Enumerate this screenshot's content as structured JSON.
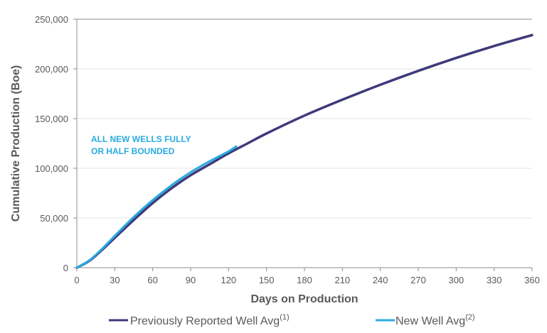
{
  "chart_data": {
    "type": "line",
    "xlabel": "Days on Production",
    "ylabel": "Cumulative Production (Boe)",
    "xlim": [
      0,
      360
    ],
    "ylim": [
      0,
      250000
    ],
    "x_ticks": [
      0,
      30,
      60,
      90,
      120,
      150,
      180,
      210,
      240,
      270,
      300,
      330,
      360
    ],
    "y_ticks": [
      0,
      50000,
      100000,
      150000,
      200000,
      250000
    ],
    "x_tick_labels": [
      "0",
      "30",
      "60",
      "90",
      "120",
      "150",
      "180",
      "210",
      "240",
      "270",
      "300",
      "330",
      "360"
    ],
    "y_tick_labels": [
      "0",
      "50,000",
      "100,000",
      "150,000",
      "200,000",
      "250,000"
    ],
    "grid": "horizontal",
    "legend_position": "bottom",
    "annotation": [
      "ALL NEW WELLS FULLY",
      "OR HALF BOUNDED"
    ],
    "series": [
      {
        "name": "Previously Reported Well Avg",
        "note": "(1)",
        "color": "#3f3a7a",
        "x": [
          0,
          10,
          20,
          30,
          45,
          60,
          75,
          90,
          105,
          120,
          135,
          150,
          180,
          210,
          240,
          270,
          300,
          330,
          360
        ],
        "y": [
          0,
          7000,
          18000,
          30000,
          48000,
          65000,
          80000,
          93000,
          104000,
          115000,
          125000,
          135000,
          153000,
          169000,
          184000,
          198000,
          211000,
          223000,
          234000
        ]
      },
      {
        "name": "New Well Avg",
        "note": "(2)",
        "color": "#29abe2",
        "x": [
          0,
          10,
          20,
          30,
          45,
          60,
          75,
          90,
          105,
          120,
          126
        ],
        "y": [
          0,
          7500,
          19000,
          32000,
          51000,
          68000,
          83000,
          96000,
          107000,
          117000,
          122000
        ]
      }
    ]
  }
}
